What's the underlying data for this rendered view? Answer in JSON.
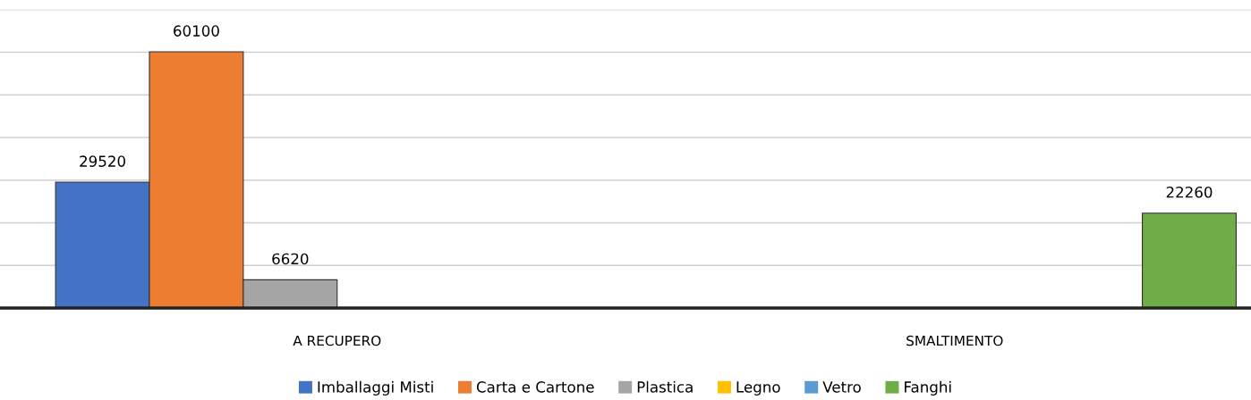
{
  "chart_data": {
    "type": "bar",
    "categories": [
      "A RECUPERO",
      "SMALTIMENTO"
    ],
    "series": [
      {
        "name": "Imballaggi Misti",
        "color": "#4472c4",
        "values": [
          29520,
          null
        ]
      },
      {
        "name": "Carta e Cartone",
        "color": "#ed7d31",
        "values": [
          60100,
          null
        ]
      },
      {
        "name": "Plastica",
        "color": "#a5a5a5",
        "values": [
          6620,
          null
        ]
      },
      {
        "name": "Legno",
        "color": "#ffc000",
        "values": [
          null,
          null
        ]
      },
      {
        "name": "Vetro",
        "color": "#5b9bd5",
        "values": [
          null,
          null
        ]
      },
      {
        "name": "Fanghi",
        "color": "#70ad47",
        "values": [
          null,
          22260
        ]
      }
    ],
    "ylim": [
      0,
      70000
    ],
    "yticks": [
      {
        "value": 0,
        "label": null
      },
      {
        "value": 10000,
        "label": null
      },
      {
        "value": 20000,
        "label": null
      },
      {
        "value": 30000,
        "label": null
      },
      {
        "value": 40000,
        "label": null
      },
      {
        "value": 50000,
        "label": null
      },
      {
        "value": 60000,
        "label": null
      },
      {
        "value": 70000,
        "label": null
      }
    ],
    "tick_labels": "x",
    "grid": "y",
    "legend": "bottom",
    "data_labels": true
  }
}
